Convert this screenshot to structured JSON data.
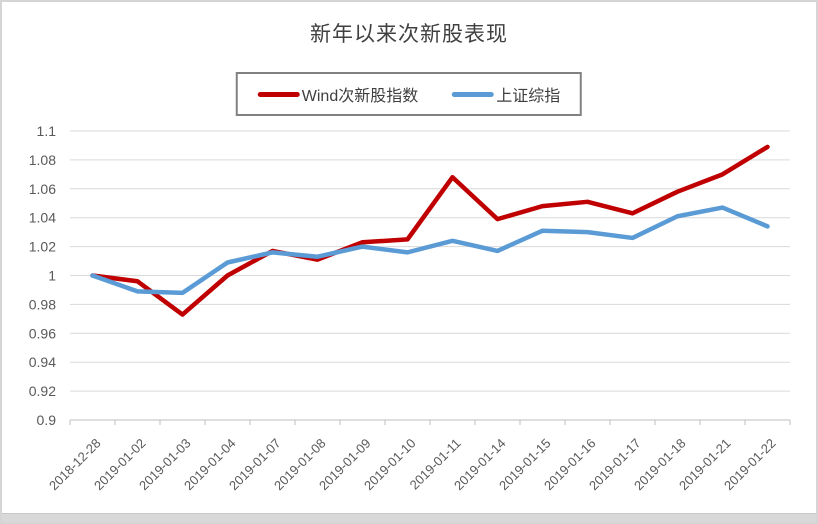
{
  "chart_data": {
    "type": "line",
    "title": "新年以来次新股表现",
    "xlabel": "",
    "ylabel": "",
    "categories": [
      "2018-12-28",
      "2019-01-02",
      "2019-01-03",
      "2019-01-04",
      "2019-01-07",
      "2019-01-08",
      "2019-01-09",
      "2019-01-10",
      "2019-01-11",
      "2019-01-14",
      "2019-01-15",
      "2019-01-16",
      "2019-01-17",
      "2019-01-18",
      "2019-01-21",
      "2019-01-22"
    ],
    "series": [
      {
        "name": "Wind次新股指数",
        "color": "#C00000",
        "values": [
          1.0,
          0.996,
          0.973,
          1.0,
          1.017,
          1.011,
          1.023,
          1.025,
          1.068,
          1.039,
          1.048,
          1.051,
          1.043,
          1.058,
          1.07,
          1.089
        ]
      },
      {
        "name": "上证综指",
        "color": "#5B9BD5",
        "values": [
          1.0,
          0.989,
          0.988,
          1.009,
          1.016,
          1.013,
          1.02,
          1.016,
          1.024,
          1.017,
          1.031,
          1.03,
          1.026,
          1.041,
          1.047,
          1.034
        ]
      }
    ],
    "ylim": [
      0.9,
      1.1
    ],
    "ytick_step": 0.02,
    "ytick_labels": [
      "1.1",
      "1.08",
      "1.06",
      "1.04",
      "1.02",
      "1",
      "0.98",
      "0.96",
      "0.94",
      "0.92",
      "0.9"
    ],
    "grid": true,
    "legend_position": "top"
  },
  "colors": {
    "gridline": "#D9D9D9",
    "axis": "#BFBFBF",
    "tick_label": "#595959",
    "title_text": "#404040",
    "legend_border": "#818181"
  }
}
